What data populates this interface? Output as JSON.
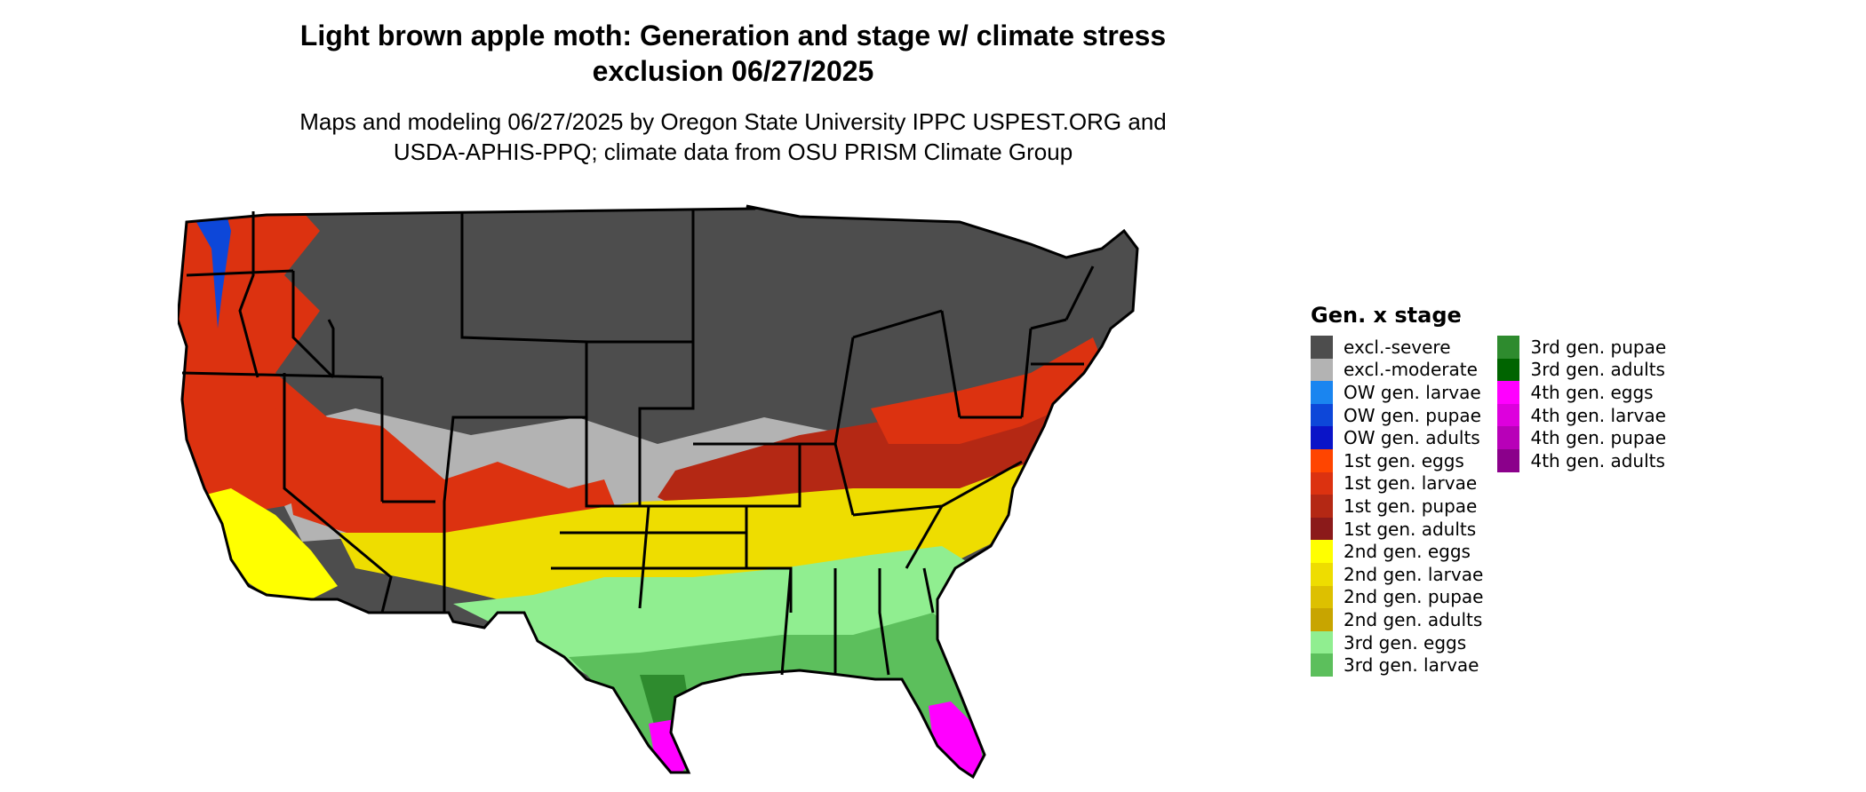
{
  "title": {
    "line1": "Light brown apple moth: Generation and stage w/ climate stress",
    "line2": "exclusion 06/27/2025"
  },
  "subtitle": {
    "line1": "Maps and modeling 06/27/2025 by Oregon State University IPPC USPEST.ORG and",
    "line2": "USDA-APHIS-PPQ; climate data from OSU PRISM Climate Group"
  },
  "legend": {
    "title": "Gen. x stage",
    "items": [
      {
        "label": "excl.-severe",
        "color": "#4d4d4d"
      },
      {
        "label": "excl.-moderate",
        "color": "#b3b3b3"
      },
      {
        "label": "OW gen. larvae",
        "color": "#1a85f0"
      },
      {
        "label": "OW gen. pupae",
        "color": "#0d47d9"
      },
      {
        "label": "OW gen. adults",
        "color": "#0a14c8"
      },
      {
        "label": "1st gen. eggs",
        "color": "#ff4500"
      },
      {
        "label": "1st gen. larvae",
        "color": "#dc3210"
      },
      {
        "label": "1st gen. pupae",
        "color": "#b42814"
      },
      {
        "label": "1st gen. adults",
        "color": "#8b1a1a"
      },
      {
        "label": "2nd gen. eggs",
        "color": "#ffff00"
      },
      {
        "label": "2nd gen. larvae",
        "color": "#eedd00"
      },
      {
        "label": "2nd gen. pupae",
        "color": "#ddc000"
      },
      {
        "label": "2nd gen. adults",
        "color": "#c8a500"
      },
      {
        "label": "3rd gen. eggs",
        "color": "#90ee90"
      },
      {
        "label": "3rd gen. larvae",
        "color": "#5cbf5c"
      },
      {
        "label": "3rd gen. pupae",
        "color": "#2e8b2e"
      },
      {
        "label": "3rd gen. adults",
        "color": "#006400"
      },
      {
        "label": "4th gen. eggs",
        "color": "#ff00ff"
      },
      {
        "label": "4th gen. larvae",
        "color": "#dd00dd"
      },
      {
        "label": "4th gen. pupae",
        "color": "#b800b8"
      },
      {
        "label": "4th gen. adults",
        "color": "#8b008b"
      }
    ]
  },
  "map": {
    "region": "contiguous-united-states",
    "zones": [
      {
        "name": "north-interior",
        "class": "excl.-severe"
      },
      {
        "name": "central-plains",
        "class": "excl.-moderate"
      },
      {
        "name": "pacific-northwest",
        "class": "1st gen. larvae"
      },
      {
        "name": "puget-sound",
        "class": "OW gen. pupae"
      },
      {
        "name": "great-basin",
        "class": "1st gen. larvae"
      },
      {
        "name": "ohio-valley",
        "class": "1st gen. pupae"
      },
      {
        "name": "northeast-coast",
        "class": "1st gen. larvae"
      },
      {
        "name": "california-valley",
        "class": "2nd gen. eggs"
      },
      {
        "name": "southern-plains",
        "class": "2nd gen. larvae"
      },
      {
        "name": "gulf-coast",
        "class": "3rd gen. eggs"
      },
      {
        "name": "southeast-coast",
        "class": "3rd gen. larvae"
      },
      {
        "name": "south-texas",
        "class": "3rd gen. pupae"
      },
      {
        "name": "south-florida",
        "class": "4th gen. eggs"
      },
      {
        "name": "south-texas-tip",
        "class": "4th gen. eggs"
      }
    ]
  }
}
